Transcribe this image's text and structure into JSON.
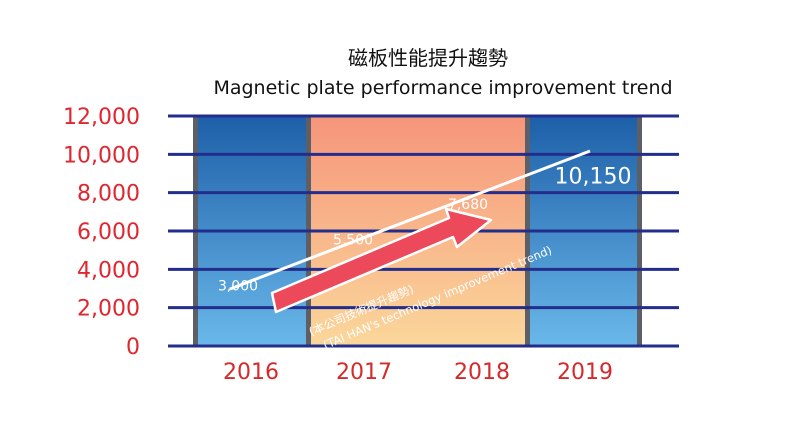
{
  "chart_data": {
    "type": "bar",
    "title": "磁板性能提升趨勢",
    "subtitle": "Magnetic plate performance improvement trend",
    "categories": [
      "2016",
      "2017",
      "2018",
      "2019"
    ],
    "ylim": [
      0,
      12000
    ],
    "yticks": [
      {
        "value": 0,
        "label": "0"
      },
      {
        "value": 2000,
        "label": "2,000"
      },
      {
        "value": 4000,
        "label": "4,000"
      },
      {
        "value": 6000,
        "label": "6,000"
      },
      {
        "value": 8000,
        "label": "8,000"
      },
      {
        "value": 10000,
        "label": "10,000"
      },
      {
        "value": 12000,
        "label": "12,000"
      }
    ],
    "grid": true,
    "trend_points": [
      {
        "category": "2016",
        "value": 3000,
        "label": "3,000"
      },
      {
        "category": "2017",
        "value": 5500,
        "label": "5,500"
      },
      {
        "category": "2018",
        "value": 7680,
        "label": "7,680"
      },
      {
        "category": "2019",
        "value": 10150,
        "label": "10,150"
      }
    ],
    "arrow_annotation": {
      "line1": "(本公司技術提升趨勢)",
      "line2": "(TAI HAN's technology improvement trend)"
    },
    "colors": {
      "blue_top": "#1d5fa8",
      "blue_bottom": "#6ab8ea",
      "orange_top": "#f6957a",
      "orange_bottom": "#fbd79b",
      "grid": "#232e8c",
      "ytick": "#e0262e",
      "xtick": "#d42a2a",
      "arrow": "#ec4a5a",
      "trend_line": "#ffffff"
    }
  }
}
